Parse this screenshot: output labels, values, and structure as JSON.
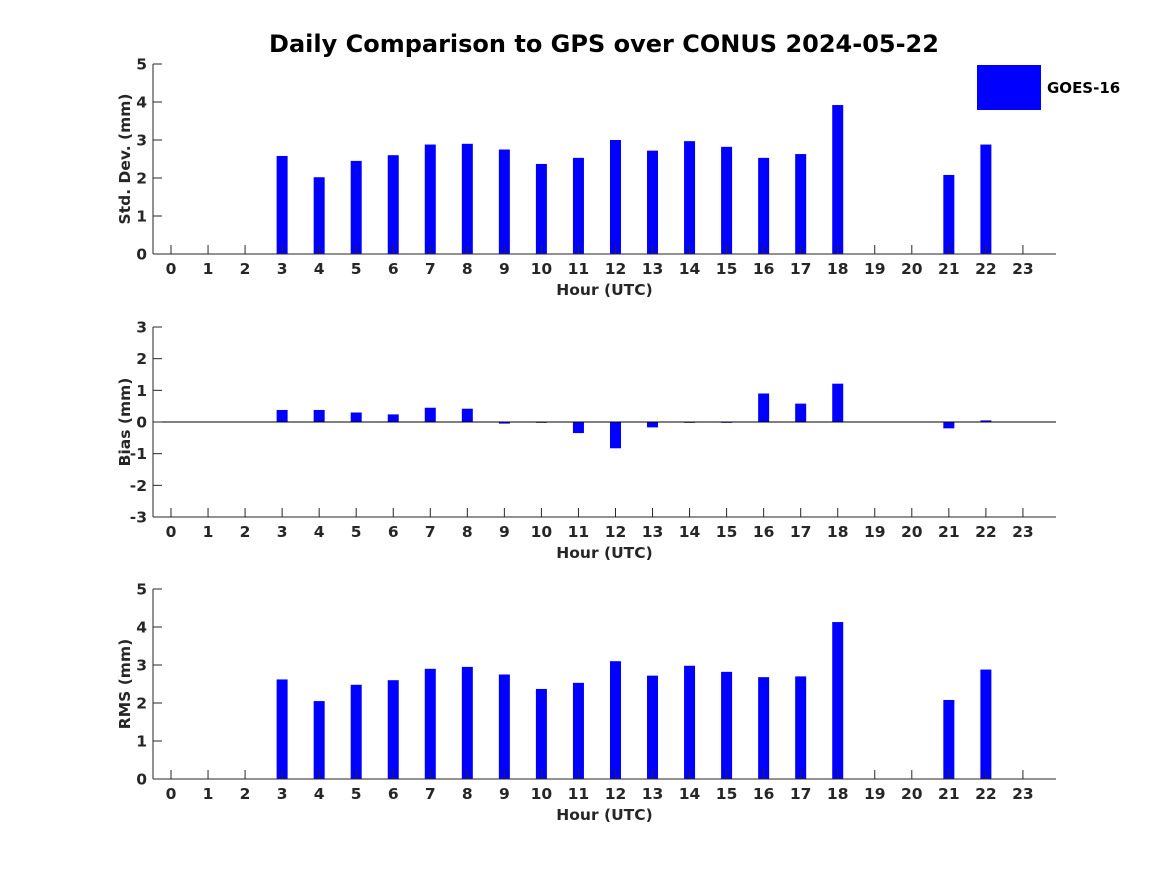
{
  "colors": {
    "bar": "#0000ff",
    "axis": "#262626",
    "background": "#ffffff"
  },
  "figure_title": "Daily Comparison to GPS over CONUS 2024-05-22",
  "legend": {
    "label": "GOES-16",
    "placement": "top-right"
  },
  "chart_data": [
    {
      "type": "bar",
      "title": "Daily Comparison to GPS over CONUS 2024-05-22",
      "xlabel": "Hour (UTC)",
      "ylabel": "Std. Dev. (mm)",
      "categories": [
        "0",
        "1",
        "2",
        "3",
        "4",
        "5",
        "6",
        "7",
        "8",
        "9",
        "10",
        "11",
        "12",
        "13",
        "14",
        "15",
        "16",
        "17",
        "18",
        "19",
        "20",
        "21",
        "22",
        "23"
      ],
      "ylim": [
        0,
        5
      ],
      "yticks": [
        "0",
        "1",
        "2",
        "3",
        "4",
        "5"
      ],
      "series": [
        {
          "name": "GOES-16",
          "values": [
            null,
            null,
            null,
            2.58,
            2.02,
            2.45,
            2.6,
            2.88,
            2.9,
            2.75,
            2.37,
            2.53,
            3.0,
            2.72,
            2.97,
            2.82,
            2.53,
            2.63,
            3.92,
            null,
            null,
            2.08,
            2.88,
            null
          ]
        }
      ]
    },
    {
      "type": "bar",
      "xlabel": "Hour (UTC)",
      "ylabel": "Bias (mm)",
      "categories": [
        "0",
        "1",
        "2",
        "3",
        "4",
        "5",
        "6",
        "7",
        "8",
        "9",
        "10",
        "11",
        "12",
        "13",
        "14",
        "15",
        "16",
        "17",
        "18",
        "19",
        "20",
        "21",
        "22",
        "23"
      ],
      "ylim": [
        -3,
        3
      ],
      "yticks": [
        "-3",
        "-2",
        "-1",
        "0",
        "1",
        "2",
        "3"
      ],
      "series": [
        {
          "name": "GOES-16",
          "values": [
            null,
            null,
            null,
            0.38,
            0.38,
            0.3,
            0.24,
            0.45,
            0.42,
            -0.05,
            0.0,
            -0.35,
            -0.83,
            -0.17,
            0.0,
            0.0,
            0.9,
            0.58,
            1.21,
            null,
            null,
            -0.2,
            0.05,
            null
          ]
        }
      ]
    },
    {
      "type": "bar",
      "xlabel": "Hour (UTC)",
      "ylabel": "RMS (mm)",
      "categories": [
        "0",
        "1",
        "2",
        "3",
        "4",
        "5",
        "6",
        "7",
        "8",
        "9",
        "10",
        "11",
        "12",
        "13",
        "14",
        "15",
        "16",
        "17",
        "18",
        "19",
        "20",
        "21",
        "22",
        "23"
      ],
      "ylim": [
        0,
        5
      ],
      "yticks": [
        "0",
        "1",
        "2",
        "3",
        "4",
        "5"
      ],
      "series": [
        {
          "name": "GOES-16",
          "values": [
            null,
            null,
            null,
            2.62,
            2.05,
            2.48,
            2.6,
            2.9,
            2.95,
            2.75,
            2.37,
            2.53,
            3.1,
            2.72,
            2.98,
            2.82,
            2.68,
            2.7,
            4.13,
            null,
            null,
            2.08,
            2.88,
            null
          ]
        }
      ]
    }
  ]
}
